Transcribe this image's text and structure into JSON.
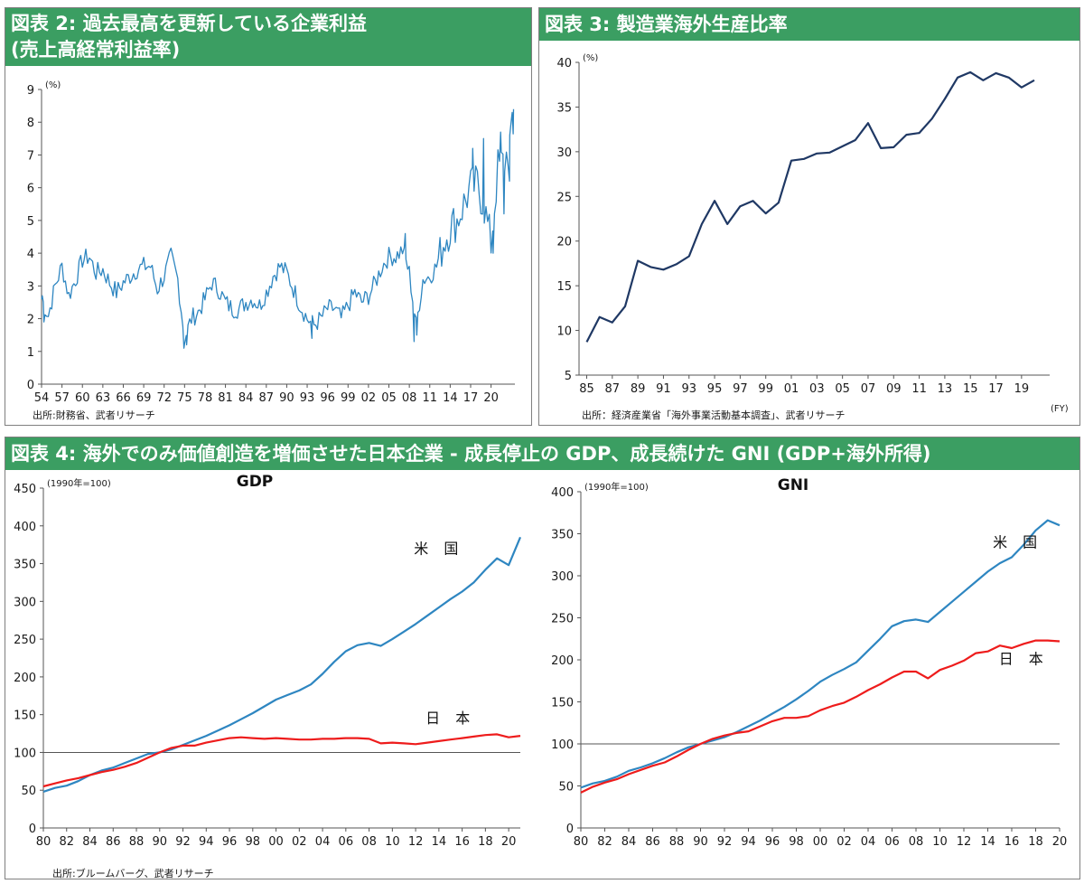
{
  "charts": [
    {
      "id": "fig2",
      "header": "図表 2: 過去最高を更新している企業利益\n(売上高経常利益率)",
      "source": "出所:財務省、武者リサーチ",
      "chart_data": {
        "type": "line",
        "title": "図表 2: 過去最高を更新している企業利益 (売上高経常利益率)",
        "unit": "(%)",
        "xlim": [
          1954,
          2023.5
        ],
        "ylim": [
          0,
          9
        ],
        "x_ticks": [
          "54",
          "57",
          "60",
          "63",
          "66",
          "69",
          "72",
          "75",
          "78",
          "81",
          "84",
          "87",
          "90",
          "93",
          "96",
          "99",
          "02",
          "05",
          "08",
          "11",
          "14",
          "17",
          "20"
        ],
        "y_ticks": [
          0,
          1,
          2,
          3,
          4,
          5,
          6,
          7,
          8,
          9
        ],
        "series": [
          {
            "color": "#2e86c1",
            "anchors": [
              [
                1954,
                2.6
              ],
              [
                1955,
                2.1
              ],
              [
                1956,
                3.0
              ],
              [
                1957,
                3.6
              ],
              [
                1958,
                2.7
              ],
              [
                1959,
                3.2
              ],
              [
                1960,
                3.8
              ],
              [
                1961,
                3.9
              ],
              [
                1962,
                3.4
              ],
              [
                1963,
                3.5
              ],
              [
                1964,
                3.1
              ],
              [
                1965,
                2.8
              ],
              [
                1966,
                3.1
              ],
              [
                1967,
                3.3
              ],
              [
                1968,
                3.5
              ],
              [
                1969,
                3.6
              ],
              [
                1970,
                3.6
              ],
              [
                1971,
                2.9
              ],
              [
                1972,
                3.3
              ],
              [
                1973,
                3.9
              ],
              [
                1974,
                3.2
              ],
              [
                1975,
                1.4
              ],
              [
                1976,
                2.0
              ],
              [
                1977,
                2.2
              ],
              [
                1978,
                2.6
              ],
              [
                1979,
                3.1
              ],
              [
                1980,
                2.9
              ],
              [
                1981,
                2.5
              ],
              [
                1982,
                2.3
              ],
              [
                1983,
                2.3
              ],
              [
                1984,
                2.5
              ],
              [
                1985,
                2.6
              ],
              [
                1986,
                2.4
              ],
              [
                1987,
                2.8
              ],
              [
                1988,
                3.3
              ],
              [
                1989,
                3.6
              ],
              [
                1990,
                3.4
              ],
              [
                1991,
                2.9
              ],
              [
                1992,
                2.4
              ],
              [
                1993,
                2.0
              ],
              [
                1994,
                1.8
              ],
              [
                1995,
                2.0
              ],
              [
                1996,
                2.3
              ],
              [
                1997,
                2.3
              ],
              [
                1998,
                2.0
              ],
              [
                1999,
                2.4
              ],
              [
                2000,
                2.8
              ],
              [
                2001,
                2.5
              ],
              [
                2002,
                2.7
              ],
              [
                2003,
                3.1
              ],
              [
                2004,
                3.6
              ],
              [
                2005,
                3.9
              ],
              [
                2006,
                3.9
              ],
              [
                2007,
                4.1
              ],
              [
                2008,
                3.4
              ],
              [
                2009,
                1.8
              ],
              [
                2010,
                3.2
              ],
              [
                2011,
                3.3
              ],
              [
                2012,
                3.6
              ],
              [
                2013,
                4.3
              ],
              [
                2014,
                4.8
              ],
              [
                2015,
                5.0
              ],
              [
                2016,
                5.5
              ],
              [
                2017,
                6.0
              ],
              [
                2018,
                6.1
              ],
              [
                2019,
                5.4
              ],
              [
                2020,
                4.3
              ],
              [
                2021,
                6.6
              ],
              [
                2022,
                6.8
              ],
              [
                2023,
                7.5
              ]
            ],
            "spikes": [
              [
                1954.1,
                2.7
              ],
              [
                1954.35,
                1.9
              ],
              [
                1974.9,
                1.1
              ],
              [
                1975.3,
                1.2
              ],
              [
                1993.7,
                1.4
              ],
              [
                2007.4,
                4.6
              ],
              [
                2008.7,
                1.3
              ],
              [
                2009.1,
                1.5
              ],
              [
                2017.3,
                7.2
              ],
              [
                2018.9,
                7.5
              ],
              [
                2020.3,
                4.0
              ],
              [
                2021.4,
                7.7
              ],
              [
                2021.9,
                5.2
              ],
              [
                2022.7,
                6.2
              ],
              [
                2023.1,
                8.3
              ],
              [
                2023.3,
                8.4
              ]
            ],
            "noise_amp": 0.3
          }
        ]
      }
    },
    {
      "id": "fig3",
      "header": "図表 3: 製造業海外生産比率",
      "chart_data": {
        "type": "line",
        "title": "図表 3: 製造業海外生産比率",
        "unit": "(%)",
        "x_unit": "(FY)",
        "xlim": [
          1984.4,
          2021.2
        ],
        "ylim": [
          5,
          40
        ],
        "x_ticks": [
          "85",
          "87",
          "89",
          "91",
          "93",
          "95",
          "97",
          "99",
          "01",
          "03",
          "05",
          "07",
          "09",
          "11",
          "13",
          "15",
          "17",
          "19"
        ],
        "y_ticks": [
          5,
          10,
          15,
          20,
          25,
          30,
          35,
          40
        ],
        "series": [
          {
            "color": "#1f3864",
            "x": [
              1985,
              1986,
              1987,
              1988,
              1989,
              1990,
              1991,
              1992,
              1993,
              1994,
              1995,
              1996,
              1997,
              1998,
              1999,
              2000,
              2001,
              2002,
              2003,
              2004,
              2005,
              2006,
              2007,
              2008,
              2009,
              2010,
              2011,
              2012,
              2013,
              2014,
              2015,
              2016,
              2017,
              2018,
              2019,
              2020
            ],
            "values": [
              8.7,
              11.5,
              10.9,
              12.7,
              17.8,
              17.1,
              16.8,
              17.4,
              18.3,
              21.9,
              24.5,
              21.9,
              23.9,
              24.5,
              23.1,
              24.3,
              29.0,
              29.2,
              29.8,
              29.9,
              30.6,
              31.3,
              33.2,
              30.4,
              30.5,
              31.9,
              32.1,
              33.7,
              35.9,
              38.3,
              38.9,
              38.0,
              38.8,
              38.3,
              37.2,
              38.0
            ]
          }
        ],
        "source": "出所：経済産業省「海外事業活動基本調査」、武者リサーチ"
      }
    },
    {
      "id": "fig4",
      "header": "図表 4: 海外でのみ価値創造を増価させた日本企業 - 成長停止の GDP、成長続けた GNI (GDP+海外所得)",
      "source": "出所:ブルームバーグ、武者リサーチ",
      "subcharts": [
        {
          "id": "gdp",
          "chart_data": {
            "type": "line",
            "title": "GDP",
            "unit": "(1990年=100)",
            "xlim": [
              1980,
              2021
            ],
            "ylim": [
              0,
              450
            ],
            "x_ticks": [
              "80",
              "82",
              "84",
              "86",
              "88",
              "90",
              "92",
              "94",
              "96",
              "98",
              "00",
              "02",
              "04",
              "06",
              "08",
              "10",
              "12",
              "14",
              "16",
              "18",
              "20"
            ],
            "y_ticks": [
              0,
              50,
              100,
              150,
              200,
              250,
              300,
              350,
              400,
              450
            ],
            "baseline": 100,
            "x": [
              1980,
              1981,
              1982,
              1983,
              1984,
              1985,
              1986,
              1987,
              1988,
              1989,
              1990,
              1991,
              1992,
              1993,
              1994,
              1995,
              1996,
              1997,
              1998,
              1999,
              2000,
              2001,
              2002,
              2003,
              2004,
              2005,
              2006,
              2007,
              2008,
              2009,
              2010,
              2011,
              2012,
              2013,
              2014,
              2015,
              2016,
              2017,
              2018,
              2019,
              2020,
              2021
            ],
            "series": [
              {
                "name": "米 国",
                "color": "#2e86c1",
                "values": [
                  48,
                  53,
                  56,
                  62,
                  70,
                  76,
                  80,
                  86,
                  92,
                  98,
                  100,
                  104,
                  110,
                  116,
                  122,
                  129,
                  136,
                  144,
                  152,
                  161,
                  170,
                  176,
                  182,
                  190,
                  204,
                  220,
                  234,
                  242,
                  245,
                  241,
                  250,
                  260,
                  270,
                  281,
                  292,
                  303,
                  313,
                  325,
                  342,
                  357,
                  348,
                  385
                ]
              },
              {
                "name": "日 本",
                "color": "#ee1c1c",
                "values": [
                  55,
                  59,
                  63,
                  66,
                  70,
                  74,
                  77,
                  81,
                  86,
                  93,
                  100,
                  106,
                  109,
                  109,
                  113,
                  116,
                  119,
                  120,
                  119,
                  118,
                  119,
                  118,
                  117,
                  117,
                  118,
                  118,
                  119,
                  119,
                  118,
                  112,
                  113,
                  112,
                  111,
                  113,
                  115,
                  117,
                  119,
                  121,
                  123,
                  124,
                  120,
                  122
                ]
              }
            ],
            "labels": [
              {
                "text": "米 国",
                "series": 0,
                "x": 2014,
                "y": 363
              },
              {
                "text": "日 本",
                "series": 1,
                "x": 2015,
                "y": 139
              }
            ]
          }
        },
        {
          "id": "gni",
          "chart_data": {
            "type": "line",
            "title": "GNI",
            "unit": "(1990年=100)",
            "xlim": [
              1980,
              2020
            ],
            "ylim": [
              0,
              400
            ],
            "x_ticks": [
              "80",
              "82",
              "84",
              "86",
              "88",
              "90",
              "92",
              "94",
              "96",
              "98",
              "00",
              "02",
              "04",
              "06",
              "08",
              "10",
              "12",
              "14",
              "16",
              "18",
              "20"
            ],
            "y_ticks": [
              0,
              50,
              100,
              150,
              200,
              250,
              300,
              350,
              400
            ],
            "baseline": 100,
            "x": [
              1980,
              1981,
              1982,
              1983,
              1984,
              1985,
              1986,
              1987,
              1988,
              1989,
              1990,
              1991,
              1992,
              1993,
              1994,
              1995,
              1996,
              1997,
              1998,
              1999,
              2000,
              2001,
              2002,
              2003,
              2004,
              2005,
              2006,
              2007,
              2008,
              2009,
              2010,
              2011,
              2012,
              2013,
              2014,
              2015,
              2016,
              2017,
              2018,
              2019,
              2020
            ],
            "series": [
              {
                "name": "米 国",
                "color": "#2e86c1",
                "values": [
                  48,
                  53,
                  56,
                  61,
                  68,
                  72,
                  77,
                  83,
                  90,
                  96,
                  100,
                  104,
                  108,
                  114,
                  121,
                  128,
                  136,
                  144,
                  153,
                  163,
                  174,
                  182,
                  189,
                  197,
                  211,
                  225,
                  240,
                  246,
                  248,
                  245,
                  257,
                  269,
                  281,
                  293,
                  305,
                  315,
                  322,
                  337,
                  354,
                  366,
                  360
                ]
              },
              {
                "name": "日 本",
                "color": "#ee1c1c",
                "values": [
                  42,
                  49,
                  54,
                  58,
                  64,
                  69,
                  74,
                  78,
                  85,
                  93,
                  100,
                  106,
                  110,
                  113,
                  115,
                  121,
                  127,
                  131,
                  131,
                  133,
                  140,
                  145,
                  149,
                  156,
                  164,
                  171,
                  179,
                  186,
                  186,
                  178,
                  188,
                  193,
                  199,
                  208,
                  210,
                  217,
                  214,
                  219,
                  223,
                  223,
                  222
                ]
              }
            ],
            "labels": [
              {
                "text": "米 国",
                "series": 0,
                "x": 2016.5,
                "y": 334
              },
              {
                "text": "日 本",
                "series": 1,
                "x": 2017,
                "y": 195
              }
            ]
          }
        }
      ]
    }
  ]
}
